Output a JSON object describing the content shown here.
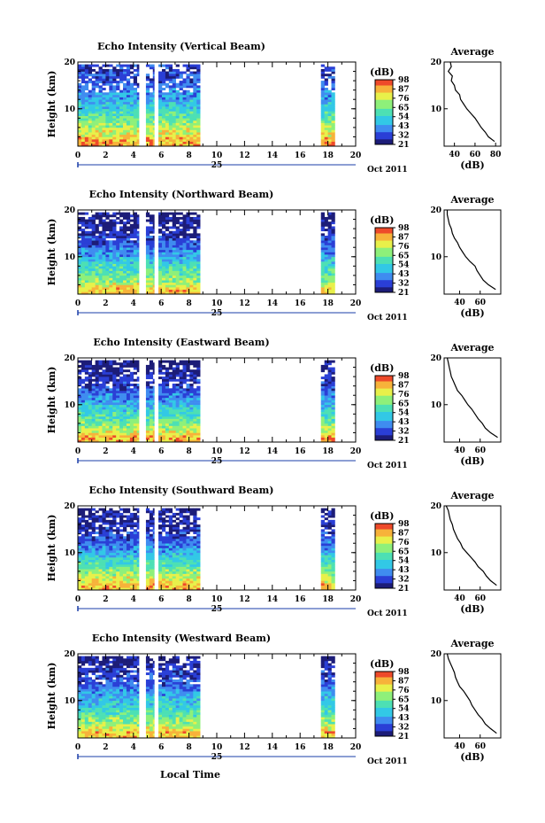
{
  "figure": {
    "x_axis_label": "Local Time",
    "date_label": "Oct 2011",
    "day_label": "25"
  },
  "chart_data": [
    {
      "type": "heatmap",
      "title": "Echo Intensity (Vertical Beam)",
      "ylabel": "Height (km)",
      "xlabel": "Local Time",
      "xlim": [
        0,
        20
      ],
      "ylim": [
        2,
        20
      ],
      "x_ticks": [
        "0",
        "2",
        "4",
        "6",
        "8",
        "10",
        "12",
        "14",
        "16",
        "18",
        "20"
      ],
      "y_ticks": [
        "10",
        "20"
      ],
      "data_intervals_hours": [
        [
          0,
          4.4
        ],
        [
          4.9,
          5.5
        ],
        [
          5.8,
          8.8
        ],
        [
          17.5,
          18.5
        ]
      ],
      "colorbar": {
        "unit": "(dB)",
        "levels": [
          "21",
          "32",
          "43",
          "54",
          "65",
          "76",
          "87",
          "98"
        ]
      },
      "profile": {
        "title": "Average",
        "xlabel": "(dB)",
        "x_ticks": [
          "40",
          "60",
          "80"
        ],
        "ylim": [
          2,
          20
        ],
        "xlim": [
          30,
          85
        ],
        "height_km": [
          3,
          4,
          5,
          6,
          7,
          8,
          9,
          10,
          11,
          12,
          13,
          14,
          15,
          16,
          17,
          18,
          19,
          20
        ],
        "avg_db": [
          79,
          73,
          70,
          66,
          63,
          60,
          56,
          52,
          49,
          46,
          45,
          41,
          40,
          37,
          38,
          34,
          37,
          36
        ]
      }
    },
    {
      "type": "heatmap",
      "title": "Echo Intensity (Northward Beam)",
      "ylabel": "Height (km)",
      "xlabel": "Local Time",
      "xlim": [
        0,
        20
      ],
      "ylim": [
        2,
        20
      ],
      "x_ticks": [
        "0",
        "2",
        "4",
        "6",
        "8",
        "10",
        "12",
        "14",
        "16",
        "18",
        "20"
      ],
      "y_ticks": [
        "10",
        "20"
      ],
      "data_intervals_hours": [
        [
          0,
          4.4
        ],
        [
          4.9,
          5.5
        ],
        [
          5.8,
          8.8
        ],
        [
          17.5,
          18.5
        ]
      ],
      "colorbar": {
        "unit": "(dB)",
        "levels": [
          "21",
          "32",
          "43",
          "54",
          "65",
          "76",
          "87",
          "98"
        ]
      },
      "profile": {
        "title": "Average",
        "xlabel": "(dB)",
        "x_ticks": [
          "40",
          "60"
        ],
        "ylim": [
          2,
          20
        ],
        "xlim": [
          25,
          80
        ],
        "height_km": [
          3,
          4,
          5,
          6,
          7,
          8,
          9,
          10,
          11,
          12,
          13,
          14,
          15,
          16,
          17,
          18,
          19,
          20
        ],
        "avg_db": [
          75,
          68,
          63,
          60,
          57,
          55,
          50,
          46,
          43,
          40,
          38,
          35,
          33,
          32,
          30,
          29,
          28,
          28
        ]
      }
    },
    {
      "type": "heatmap",
      "title": "Echo Intensity (Eastward Beam)",
      "ylabel": "Height (km)",
      "xlabel": "Local Time",
      "xlim": [
        0,
        20
      ],
      "ylim": [
        2,
        20
      ],
      "x_ticks": [
        "0",
        "2",
        "4",
        "6",
        "8",
        "10",
        "12",
        "14",
        "16",
        "18",
        "20"
      ],
      "y_ticks": [
        "10",
        "20"
      ],
      "data_intervals_hours": [
        [
          0,
          4.4
        ],
        [
          4.9,
          5.5
        ],
        [
          5.8,
          8.8
        ],
        [
          17.5,
          18.5
        ]
      ],
      "colorbar": {
        "unit": "(dB)",
        "levels": [
          "21",
          "32",
          "43",
          "54",
          "65",
          "76",
          "87",
          "98"
        ]
      },
      "profile": {
        "title": "Average",
        "xlabel": "(dB)",
        "x_ticks": [
          "40",
          "60"
        ],
        "ylim": [
          2,
          20
        ],
        "xlim": [
          25,
          80
        ],
        "height_km": [
          3,
          4,
          5,
          6,
          7,
          8,
          9,
          10,
          11,
          12,
          13,
          14,
          15,
          16,
          17,
          18,
          19,
          20
        ],
        "avg_db": [
          77,
          70,
          65,
          62,
          58,
          55,
          52,
          48,
          45,
          42,
          38,
          36,
          34,
          32,
          31,
          30,
          29,
          28
        ]
      }
    },
    {
      "type": "heatmap",
      "title": "Echo Intensity (Southward Beam)",
      "ylabel": "Height (km)",
      "xlabel": "Local Time",
      "xlim": [
        0,
        20
      ],
      "ylim": [
        2,
        20
      ],
      "x_ticks": [
        "0",
        "2",
        "4",
        "6",
        "8",
        "10",
        "12",
        "14",
        "16",
        "18",
        "20"
      ],
      "y_ticks": [
        "10",
        "20"
      ],
      "data_intervals_hours": [
        [
          0,
          4.4
        ],
        [
          4.9,
          5.5
        ],
        [
          5.8,
          8.8
        ],
        [
          17.5,
          18.5
        ]
      ],
      "colorbar": {
        "unit": "(dB)",
        "levels": [
          "21",
          "32",
          "43",
          "54",
          "65",
          "76",
          "87",
          "98"
        ]
      },
      "profile": {
        "title": "Average",
        "xlabel": "(dB)",
        "x_ticks": [
          "40",
          "60"
        ],
        "ylim": [
          2,
          20
        ],
        "xlim": [
          25,
          80
        ],
        "height_km": [
          3,
          4,
          5,
          6,
          7,
          8,
          9,
          10,
          11,
          12,
          13,
          14,
          15,
          16,
          17,
          18,
          19,
          20
        ],
        "avg_db": [
          76,
          70,
          66,
          63,
          58,
          55,
          51,
          47,
          43,
          41,
          38,
          36,
          34,
          33,
          31,
          30,
          29,
          27
        ]
      }
    },
    {
      "type": "heatmap",
      "title": "Echo Intensity (Westward Beam)",
      "ylabel": "Height (km)",
      "xlabel": "Local Time",
      "xlim": [
        0,
        20
      ],
      "ylim": [
        2,
        20
      ],
      "x_ticks": [
        "0",
        "2",
        "4",
        "6",
        "8",
        "10",
        "12",
        "14",
        "16",
        "18",
        "20"
      ],
      "y_ticks": [
        "10",
        "20"
      ],
      "data_intervals_hours": [
        [
          0,
          4.4
        ],
        [
          4.9,
          5.5
        ],
        [
          5.8,
          8.8
        ],
        [
          17.5,
          18.5
        ]
      ],
      "colorbar": {
        "unit": "(dB)",
        "levels": [
          "21",
          "32",
          "43",
          "54",
          "65",
          "76",
          "87",
          "98"
        ]
      },
      "profile": {
        "title": "Average",
        "xlabel": "(dB)",
        "x_ticks": [
          "40",
          "60"
        ],
        "ylim": [
          2,
          20
        ],
        "xlim": [
          25,
          80
        ],
        "height_km": [
          3,
          4,
          5,
          6,
          7,
          8,
          9,
          10,
          11,
          12,
          13,
          14,
          15,
          16,
          17,
          18,
          19,
          20
        ],
        "avg_db": [
          76,
          70,
          65,
          62,
          58,
          55,
          52,
          50,
          47,
          44,
          40,
          38,
          36,
          35,
          33,
          31,
          29,
          28
        ]
      }
    }
  ],
  "colormap": [
    "#1c1c78",
    "#2a3fd6",
    "#3f8cf0",
    "#32c8e6",
    "#4de0b4",
    "#8ef07a",
    "#e8f04a",
    "#f7b23a",
    "#ee4a2a"
  ]
}
